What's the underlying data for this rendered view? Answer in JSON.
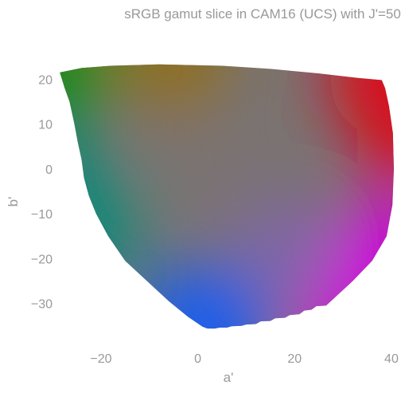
{
  "chart_data": {
    "type": "area",
    "title": "sRGB gamut slice in CAM16 (UCS) with J'=50",
    "xlabel": "a'",
    "ylabel": "b'",
    "xlim": [
      -31,
      40.5
    ],
    "ylim": [
      -37,
      27
    ],
    "xticks": [
      -20,
      0,
      20,
      40
    ],
    "yticks": [
      20,
      10,
      0,
      -10,
      -20,
      -30
    ],
    "grid": false,
    "legend": "none",
    "boundary": [
      [
        -28.5,
        21.5
      ],
      [
        -24,
        22.5
      ],
      [
        -18,
        23.0
      ],
      [
        -8,
        23.3
      ],
      [
        5,
        23.0
      ],
      [
        15,
        22.3
      ],
      [
        25,
        21.3
      ],
      [
        33,
        20.3
      ],
      [
        38,
        19.8
      ],
      [
        38.7,
        18.0
      ],
      [
        39.5,
        14.0
      ],
      [
        40.3,
        8.0
      ],
      [
        40.5,
        0.0
      ],
      [
        40.2,
        -8.0
      ],
      [
        39.0,
        -15.0
      ],
      [
        36.0,
        -20.5
      ],
      [
        32.0,
        -25.0
      ],
      [
        26.5,
        -30.5
      ],
      [
        24.5,
        -30.6
      ],
      [
        23.5,
        -31.4
      ],
      [
        22.0,
        -31.6
      ],
      [
        21.0,
        -32.4
      ],
      [
        19.0,
        -32.6
      ],
      [
        18.0,
        -33.2
      ],
      [
        16.0,
        -33.3
      ],
      [
        15.0,
        -33.9
      ],
      [
        13.0,
        -34.0
      ],
      [
        12.0,
        -34.6
      ],
      [
        10.0,
        -34.7
      ],
      [
        9.0,
        -35.0
      ],
      [
        7.0,
        -35.1
      ],
      [
        6.0,
        -35.4
      ],
      [
        4.5,
        -35.4
      ],
      [
        3.5,
        -35.6
      ],
      [
        2.0,
        -35.6
      ],
      [
        1.0,
        -35.2
      ],
      [
        -2.0,
        -33.0
      ],
      [
        -6.0,
        -29.5
      ],
      [
        -11.0,
        -24.5
      ],
      [
        -15.0,
        -20.5
      ],
      [
        -18.5,
        -15.0
      ],
      [
        -21.0,
        -10.0
      ],
      [
        -22.5,
        -6.0
      ],
      [
        -23.5,
        -2.0
      ],
      [
        -24.0,
        2.0
      ],
      [
        -24.8,
        6.0
      ],
      [
        -25.5,
        10.0
      ],
      [
        -26.5,
        15.0
      ],
      [
        -27.5,
        18.0
      ],
      [
        -28.5,
        21.5
      ]
    ],
    "colors": {
      "green": "#1e8a12",
      "olive": "#8f6f1a",
      "red": "#d8101c",
      "magenta": "#cc00d8",
      "purple": "#8066a6",
      "blue": "#1c5fea",
      "teal": "#0c8878",
      "center": "#7a7372"
    }
  }
}
